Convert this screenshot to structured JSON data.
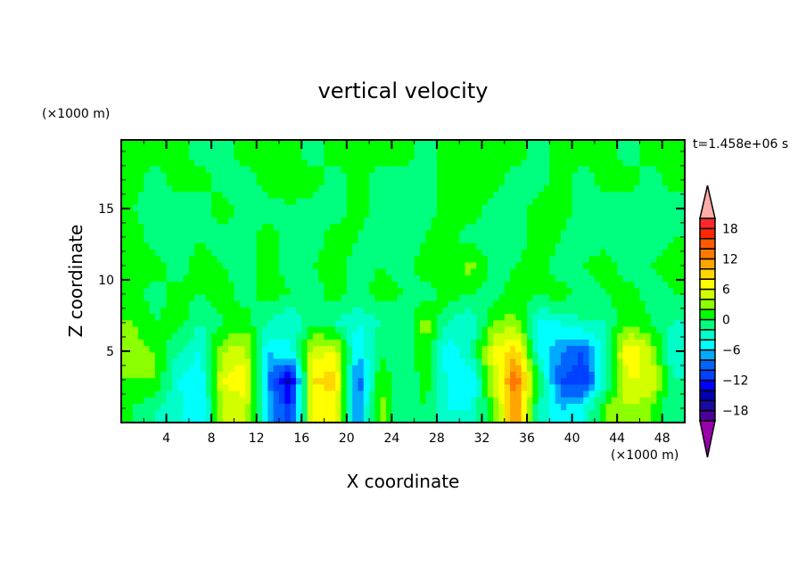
{
  "chart_data": {
    "type": "heatmap",
    "title": "vertical velocity",
    "xlabel": "X coordinate",
    "ylabel": "Z coordinate",
    "x_unit": "(×1000 m)",
    "y_unit": "(×1000 m)",
    "time_label": "t=1.458e+06 s",
    "xlim": [
      0,
      50
    ],
    "ylim": [
      0,
      19.8
    ],
    "x_ticks": [
      4,
      8,
      12,
      16,
      20,
      24,
      28,
      32,
      36,
      40,
      44,
      48
    ],
    "y_ticks": [
      5,
      10,
      15
    ],
    "x_centers": [
      1,
      3,
      5,
      7,
      9,
      11,
      13,
      15,
      17,
      19,
      21,
      23,
      25,
      27,
      29,
      31,
      33,
      35,
      37,
      39,
      41,
      43,
      45,
      47,
      49
    ],
    "z_centers": [
      1,
      3,
      5,
      7,
      9,
      11,
      13,
      15,
      17,
      19
    ],
    "values": [
      [
        0,
        -2,
        -3,
        -6,
        4,
        5,
        -6,
        -12,
        7,
        6,
        -8,
        3,
        -2,
        0,
        -4,
        -4,
        2,
        12,
        -2,
        -6,
        -4,
        2,
        4,
        2,
        -2
      ],
      [
        2,
        2,
        -4,
        -6,
        6,
        8,
        -8,
        -15,
        8,
        9,
        -10,
        2,
        -2,
        1,
        -4,
        -6,
        4,
        14,
        0,
        -10,
        -12,
        -2,
        6,
        6,
        -2
      ],
      [
        3,
        2,
        -2,
        -4,
        4,
        5,
        -6,
        -4,
        5,
        6,
        -6,
        0,
        -2,
        2,
        -6,
        -2,
        6,
        10,
        -4,
        -8,
        -10,
        -2,
        8,
        4,
        -4
      ],
      [
        2,
        0,
        1,
        -2,
        0,
        1,
        -2,
        -4,
        0,
        -2,
        -4,
        -2,
        -2,
        3,
        -2,
        -4,
        2,
        3,
        -4,
        -4,
        -2,
        -2,
        2,
        0,
        -2
      ],
      [
        1,
        -1,
        1,
        0,
        1,
        -1,
        1,
        0,
        -1,
        1,
        -1,
        1,
        0,
        -1,
        1,
        0,
        -1,
        1,
        0,
        1,
        -1,
        0,
        1,
        -1,
        0
      ],
      [
        2,
        1,
        -1,
        1,
        0,
        -1,
        1,
        -1,
        0,
        1,
        -1,
        0,
        -1,
        1,
        0,
        3,
        -1,
        0,
        1,
        -1,
        0,
        1,
        -1,
        0,
        1
      ],
      [
        1,
        -1,
        -1,
        0,
        -1,
        -1,
        1,
        -1,
        -1,
        1,
        0,
        -1,
        -1,
        0,
        1,
        -1,
        -1,
        -1,
        1,
        0,
        -1,
        -1,
        -1,
        -1,
        0
      ],
      [
        0,
        -1,
        -1,
        -1,
        1,
        -1,
        -1,
        0,
        -1,
        -1,
        1,
        -1,
        -1,
        -1,
        1,
        1,
        -1,
        -1,
        1,
        1,
        -1,
        -1,
        -1,
        -1,
        -1
      ],
      [
        1,
        -1,
        1,
        1,
        -1,
        -1,
        1,
        1,
        1,
        -1,
        1,
        -1,
        -1,
        -1,
        1,
        1,
        1,
        -1,
        -1,
        1,
        -1,
        1,
        1,
        -1,
        1
      ],
      [
        1,
        1,
        1,
        -1,
        -1,
        1,
        1,
        1,
        -1,
        1,
        1,
        1,
        1,
        -1,
        1,
        1,
        1,
        1,
        -1,
        1,
        1,
        1,
        -1,
        1,
        1
      ]
    ],
    "colorbar": {
      "levels": [
        -20,
        -18,
        -16,
        -14,
        -12,
        -10,
        -8,
        -6,
        -4,
        -2,
        0,
        2,
        4,
        6,
        8,
        10,
        12,
        14,
        16,
        18,
        20
      ],
      "labels": [
        "18",
        "12",
        "6",
        "0",
        "−6",
        "−12",
        "−18"
      ],
      "label_values": [
        18,
        12,
        6,
        0,
        -6,
        -12,
        -18
      ],
      "colors": [
        "#4b0096",
        "#1a0aa0",
        "#0000b0",
        "#0000ff",
        "#0040ff",
        "#0064ff",
        "#00aaff",
        "#00ffff",
        "#00ffc8",
        "#00ff7f",
        "#00ff00",
        "#8cff00",
        "#d2ff00",
        "#ffff00",
        "#ffd700",
        "#ffa500",
        "#ff7800",
        "#ff5a00",
        "#ff2800",
        "#ff2828"
      ],
      "over_color": "#ffaaaa",
      "under_color": "#9900aa"
    }
  }
}
